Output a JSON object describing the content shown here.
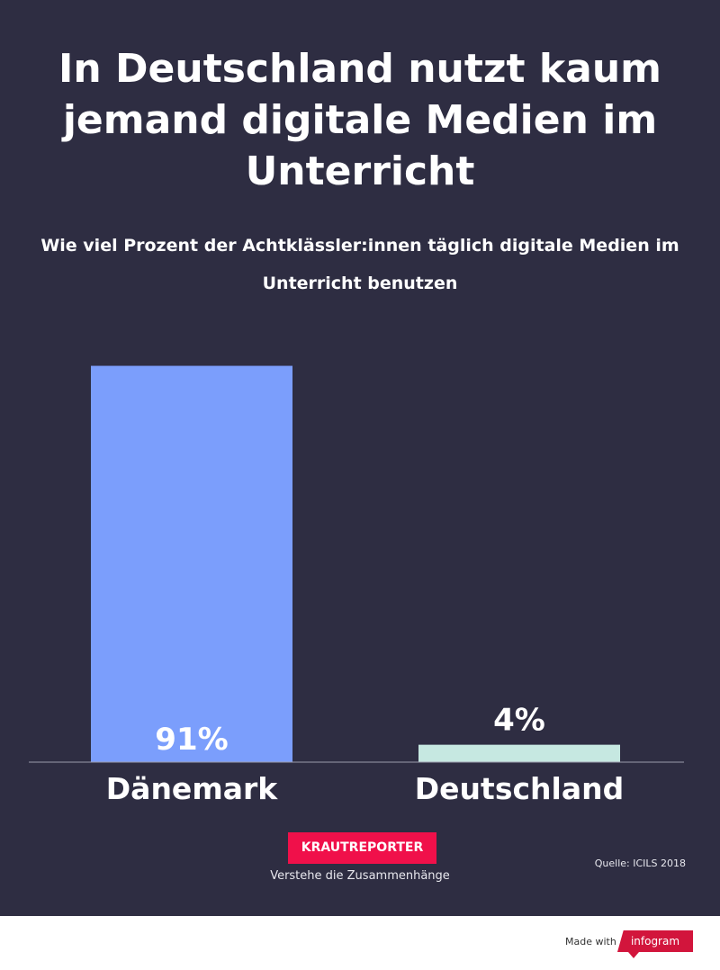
{
  "chart_data": {
    "type": "bar",
    "title": "In Deutschland nutzt kaum jemand digitale Medien im Unterricht",
    "subtitle": "Wie viel Prozent der Achtklässler:innen täglich digitale Medien im Unterricht benutzen",
    "categories": [
      "Dänemark",
      "Deutschland"
    ],
    "values": [
      91,
      4
    ],
    "value_labels": [
      "91%",
      "4%"
    ],
    "unit": "%",
    "ylim": [
      0,
      100
    ],
    "xlabel": "",
    "ylabel": "",
    "grid": false,
    "colors": [
      "#7b9efc",
      "#c6e8e1"
    ]
  },
  "brand": {
    "name": "KRAUTREPORTER",
    "tagline": "Verstehe die Zusammenhänge"
  },
  "source": "Quelle: ICILS 2018",
  "footer": {
    "made_with": "Made with",
    "logo_text": "infogram"
  },
  "theme": {
    "background": "#2e2d42",
    "axis": "#9a9aac",
    "brand": "#f0104a"
  }
}
